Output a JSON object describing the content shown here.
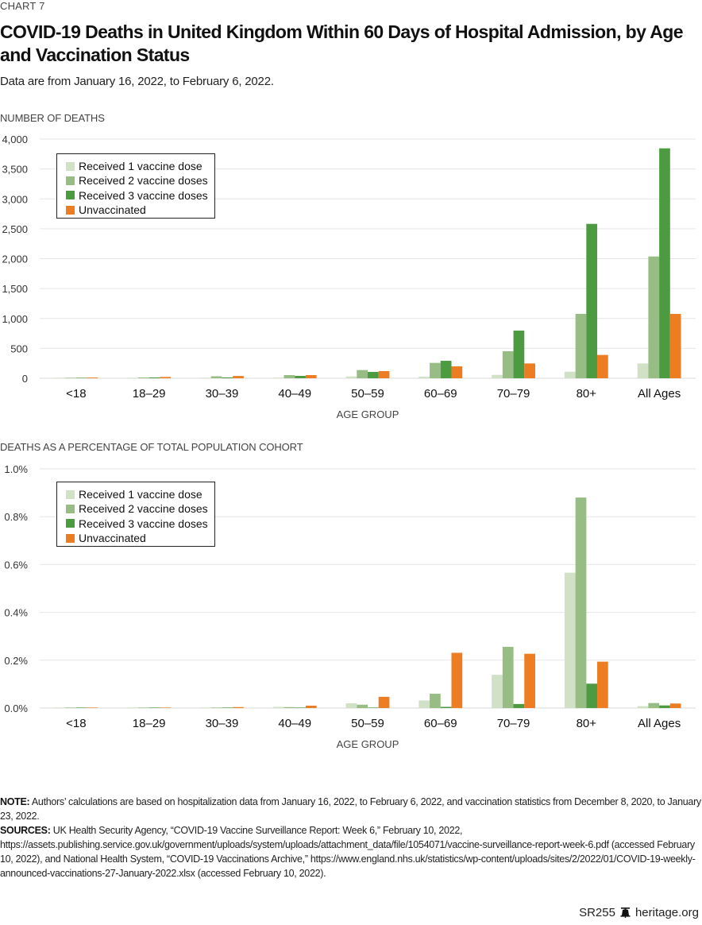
{
  "header": {
    "chart_number": "CHART 7",
    "title": "COVID-19 Deaths in United Kingdom Within 60 Days of Hospital Admission, by Age and Vaccination Status",
    "subtitle": "Data are from January 16, 2022, to February 6, 2022."
  },
  "colors": {
    "dose1": "#d0e1c5",
    "dose2": "#97bd84",
    "dose3": "#4c9b41",
    "unvaccinated": "#ec7d22",
    "gridline": "#e6e6e6"
  },
  "legend": [
    {
      "label": "Received 1 vaccine dose",
      "key": "dose1"
    },
    {
      "label": "Received 2 vaccine doses",
      "key": "dose2"
    },
    {
      "label": "Received 3 vaccine doses",
      "key": "dose3"
    },
    {
      "label": "Unvaccinated",
      "key": "unvaccinated"
    }
  ],
  "chart_data": [
    {
      "type": "bar",
      "title": "NUMBER OF DEATHS",
      "xlabel": "AGE GROUP",
      "ylabel": "NUMBER OF DEATHS",
      "ylim": [
        0,
        4000
      ],
      "yticks": [
        0,
        500,
        1000,
        1500,
        2000,
        2500,
        3000,
        3500,
        4000
      ],
      "ytick_labels": [
        "0",
        "500",
        "1,000",
        "1,500",
        "2,000",
        "2,500",
        "3,000",
        "3,500",
        "4,000"
      ],
      "grid": true,
      "legend_position": "top-left",
      "categories": [
        "<18",
        "18–29",
        "30–39",
        "40–49",
        "50–59",
        "60–69",
        "70–79",
        "80+",
        "All Ages"
      ],
      "series": [
        {
          "name": "Received 1 vaccine dose",
          "key": "dose1",
          "values": [
            1,
            4,
            6,
            10,
            30,
            27,
            57,
            110,
            248
          ]
        },
        {
          "name": "Received 2 vaccine doses",
          "key": "dose2",
          "values": [
            2,
            14,
            33,
            53,
            137,
            257,
            452,
            1076,
            2037
          ]
        },
        {
          "name": "Received 3 vaccine doses",
          "key": "dose3",
          "values": [
            1,
            14,
            14,
            40,
            106,
            292,
            797,
            2582,
            3845
          ]
        },
        {
          "name": "Unvaccinated",
          "key": "unvaccinated",
          "values": [
            12,
            22,
            38,
            53,
            120,
            199,
            248,
            390,
            1076
          ]
        }
      ]
    },
    {
      "type": "bar",
      "title": "DEATHS AS A PERCENTAGE OF TOTAL POPULATION COHORT",
      "xlabel": "AGE GROUP",
      "ylabel": "DEATHS AS A PERCENTAGE OF TOTAL POPULATION COHORT",
      "ylim": [
        0,
        1.0
      ],
      "yticks": [
        0,
        0.2,
        0.4,
        0.6,
        0.8,
        1.0
      ],
      "ytick_labels": [
        "0.0%",
        "0.2%",
        "0.4%",
        "0.6%",
        "0.8%",
        "1.0%"
      ],
      "grid": true,
      "legend_position": "top-left",
      "categories": [
        "<18",
        "18–29",
        "30–39",
        "40–49",
        "50–59",
        "60–69",
        "70–79",
        "80+",
        "All Ages"
      ],
      "series": [
        {
          "name": "Received 1 vaccine dose",
          "key": "dose1",
          "values": [
            0.0,
            0.001,
            0.001,
            0.005,
            0.02,
            0.032,
            0.139,
            0.566,
            0.008
          ]
        },
        {
          "name": "Received 2 vaccine doses",
          "key": "dose2",
          "values": [
            0.0,
            0.001,
            0.001,
            0.004,
            0.014,
            0.06,
            0.256,
            0.88,
            0.021
          ]
        },
        {
          "name": "Received 3 vaccine doses",
          "key": "dose3",
          "values": [
            0.0,
            0.0,
            0.0,
            0.001,
            0.002,
            0.005,
            0.017,
            0.102,
            0.011
          ]
        },
        {
          "name": "Unvaccinated",
          "key": "unvaccinated",
          "values": [
            0.001,
            0.002,
            0.004,
            0.01,
            0.047,
            0.231,
            0.227,
            0.194,
            0.019
          ]
        }
      ]
    }
  ],
  "footer": {
    "note_label": "NOTE:",
    "note_text": " Authors’ calculations are based on hospitalization data from January 16, 2022, to February 6, 2022, and vaccination statistics from December 8, 2020, to January 23, 2022.",
    "sources_label": "SOURCES:",
    "sources_text": " UK Health Security Agency, “COVID-19 Vaccine Surveillance Report: Week 6,” February 10, 2022, https://assets.publishing.service.gov.uk/government/uploads/system/uploads/attachment_data/file/1054071/vaccine-surveillance-report-week-6.pdf (accessed February 10, 2022), and National Health System, “COVID-19 Vaccinations Archive,” https://www.england.nhs.uk/statistics/wp-content/uploads/sites/2/2022/01/COVID-19-weekly-announced-vaccinations-27-January-2022.xlsx (accessed February 10, 2022).",
    "report_id": "SR255",
    "site": "heritage.org",
    "logo_icon": "liberty-bell-icon"
  }
}
